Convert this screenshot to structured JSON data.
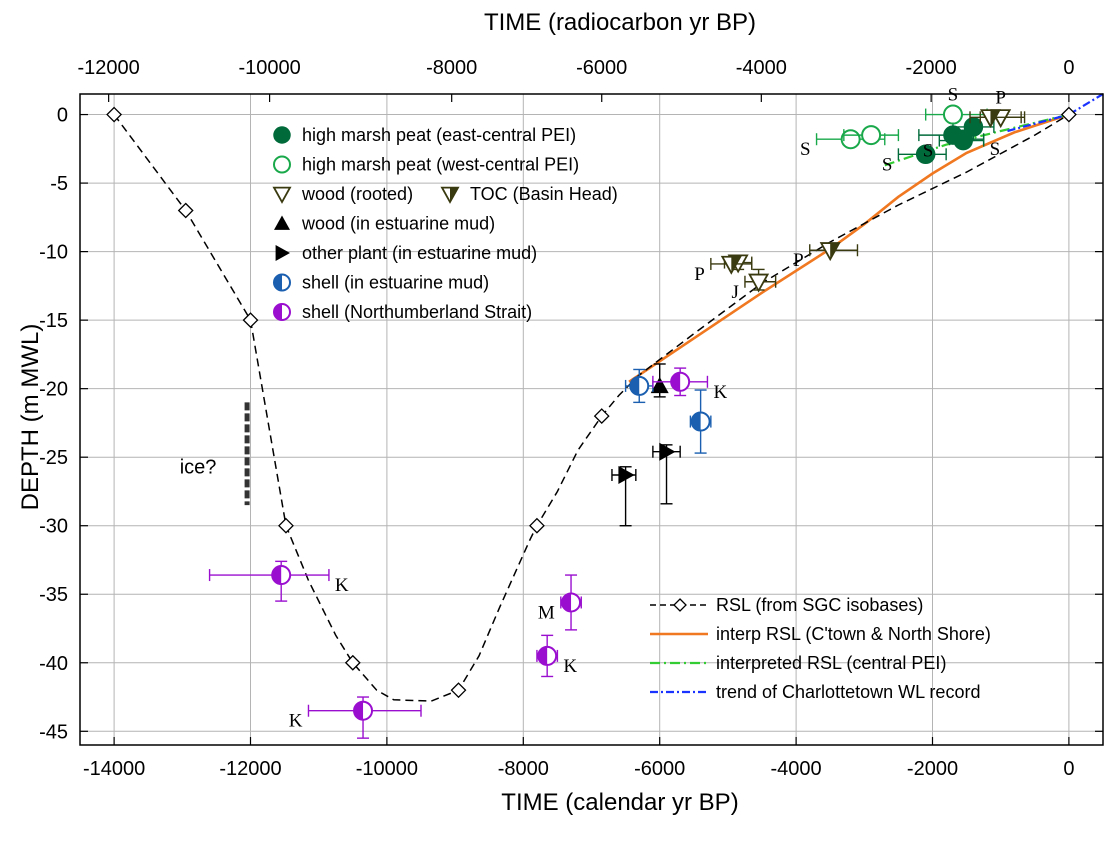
{
  "chart_data": {
    "type": "scatter",
    "title": "",
    "xlabel": "TIME (calendar yr BP)",
    "x2label": "TIME (radiocarbon yr BP)",
    "ylabel": "DEPTH (m MWL)",
    "xlim": [
      -14500,
      500
    ],
    "ylim": [
      -46,
      1.5
    ],
    "x_ticks": [
      -14000,
      -12000,
      -10000,
      -8000,
      -6000,
      -4000,
      -2000,
      0
    ],
    "x2_ticks": [
      -12000,
      -10000,
      -8000,
      -6000,
      -4000,
      -2000,
      0
    ],
    "x2_tick_positions_calendar": [
      -14080,
      -11720,
      -9050,
      -6850,
      -4510,
      -2020,
      0
    ],
    "y_ticks": [
      0,
      -5,
      -10,
      -15,
      -20,
      -25,
      -30,
      -35,
      -40,
      -45
    ],
    "grid": true,
    "colors": {
      "east_peat": "#006a3a",
      "west_peat": "#19a84a",
      "wood": "#3a3a10",
      "black": "#000000",
      "shell_estuarine": "#1a5fb0",
      "shell_strait": "#9a0fcf",
      "rsl_sgc": "#000000",
      "rsl_interp": "#f07820",
      "rsl_central": "#33cc33",
      "wl_trend": "#1a33ff"
    },
    "legend": {
      "placement": "top-left",
      "items": [
        {
          "label": "high marsh peat (east-central PEI)",
          "marker": "circle-filled"
        },
        {
          "label": "high marsh peat (west-central PEI)",
          "marker": "circle-open"
        },
        {
          "label": "wood (rooted)",
          "marker": "triangle-down-open"
        },
        {
          "label": "TOC (Basin Head)",
          "marker": "triangle-down-half"
        },
        {
          "label": "wood (in estuarine mud)",
          "marker": "triangle-up-filled"
        },
        {
          "label": "other plant (in estuarine mud)",
          "marker": "triangle-right-filled"
        },
        {
          "label": "shell (in estuarine mud)",
          "marker": "circle-half"
        },
        {
          "label": "shell (Northumberland Strait)",
          "marker": "circle-half"
        }
      ]
    },
    "legend2": {
      "placement": "bottom-right",
      "items": [
        {
          "label": "RSL (from SGC isobases)",
          "style": "dashed-diamond"
        },
        {
          "label": "interp RSL (C'town & North Shore)",
          "style": "solid-orange"
        },
        {
          "label": "interpreted RSL (central PEI)",
          "style": "dashdot-green"
        },
        {
          "label": "trend of Charlottetown WL record",
          "style": "dashdot-blue"
        }
      ]
    },
    "series": [
      {
        "name": "RSL (from SGC isobases)",
        "points": [
          [
            -14000,
            0
          ],
          [
            -12100,
            -7
          ],
          [
            -11100,
            -15
          ],
          [
            -10400,
            -21
          ],
          [
            -10000,
            -25
          ],
          [
            -9600,
            -28
          ],
          [
            -9400,
            -30
          ],
          [
            -9000,
            -33
          ],
          [
            -8600,
            -37
          ],
          [
            -8200,
            -40
          ],
          [
            -7900,
            -42
          ],
          [
            -7600,
            -43
          ],
          [
            -7200,
            -42.8
          ],
          [
            -6900,
            -42
          ],
          [
            -6700,
            -38
          ],
          [
            -6400,
            -33
          ],
          [
            -6200,
            -30
          ],
          [
            -6000,
            -27
          ],
          [
            -5700,
            -24
          ],
          [
            -5300,
            -22
          ],
          [
            -4900,
            -20.5
          ],
          [
            -4400,
            -19
          ],
          [
            -3500,
            -17
          ],
          [
            -2500,
            -14
          ],
          [
            -1500,
            -11.5
          ],
          [
            -500,
            -9
          ],
          [
            0,
            -7.5
          ],
          [
            300,
            -6.5
          ]
        ],
        "diamonds": [
          [
            -14000,
            0
          ],
          [
            -12100,
            -7
          ],
          [
            -11100,
            -15
          ],
          [
            -10200,
            -30
          ],
          [
            -9000,
            -40
          ],
          [
            -7000,
            -42
          ],
          [
            -6000,
            -30
          ],
          [
            -5000,
            -22
          ],
          [
            -4000,
            -18
          ],
          [
            -3000,
            -15
          ],
          [
            -2000,
            -12
          ],
          [
            -1000,
            -10
          ],
          [
            0,
            -7.5
          ]
        ]
      }
    ],
    "rsl_curve": [
      [
        -14000,
        0
      ],
      [
        -12950,
        -7
      ],
      [
        -12000,
        -15
      ],
      [
        -11480,
        -30
      ],
      [
        -11150,
        -34
      ],
      [
        -10750,
        -38
      ],
      [
        -10500,
        -40
      ],
      [
        -10150,
        -42
      ],
      [
        -9900,
        -42.7
      ],
      [
        -9350,
        -42.8
      ],
      [
        -8950,
        -42
      ],
      [
        -8650,
        -39.5
      ],
      [
        -8350,
        -36
      ],
      [
        -7900,
        -31
      ],
      [
        -7800,
        -30
      ],
      [
        -7500,
        -27.5
      ],
      [
        -7200,
        -24.5
      ],
      [
        -6850,
        -22
      ],
      [
        -6600,
        -20.5
      ],
      [
        -6300,
        -19
      ],
      [
        -5500,
        -16
      ],
      [
        -4500,
        -12.3
      ],
      [
        -3500,
        -9.3
      ],
      [
        -2500,
        -6.6
      ],
      [
        -1500,
        -4.2
      ],
      [
        -500,
        -1.5
      ],
      [
        0,
        0
      ]
    ],
    "rsl_diamonds": [
      [
        -14000,
        0
      ],
      [
        -12950,
        -7
      ],
      [
        -12000,
        -15
      ],
      [
        -11480,
        -30
      ],
      [
        -10500,
        -40
      ],
      [
        -8950,
        -42
      ],
      [
        -7800,
        -30
      ],
      [
        -6850,
        -22
      ],
      [
        0,
        0
      ]
    ],
    "interp_curve": [
      [
        -6450,
        -19.5
      ],
      [
        -4500,
        -13
      ],
      [
        -3500,
        -9.8
      ],
      [
        -3000,
        -8
      ],
      [
        -2500,
        -6
      ],
      [
        -2000,
        -4.3
      ],
      [
        -1500,
        -2.8
      ],
      [
        -800,
        -1.3
      ],
      [
        0,
        0
      ]
    ],
    "central_curve": [
      [
        -2700,
        -3.7
      ],
      [
        -1800,
        -2.2
      ],
      [
        -1000,
        -1.2
      ],
      [
        0,
        0
      ]
    ],
    "wl_curve": [
      [
        -900,
        -1.2
      ],
      [
        0,
        0
      ],
      [
        500,
        1.5
      ]
    ],
    "points": {
      "east_peat": [
        {
          "x": -2100,
          "y": -2.9,
          "xerr": [
            400,
            300
          ],
          "label": "S",
          "label_side": "left"
        },
        {
          "x": -1700,
          "y": -1.5,
          "xerr": [
            500,
            300
          ]
        },
        {
          "x": -1550,
          "y": -1.9,
          "xerr": [
            350,
            300
          ],
          "label": "S",
          "label_side": "left"
        },
        {
          "x": -1400,
          "y": -0.9,
          "xerr": [
            300,
            300
          ]
        },
        {
          "x": -1550,
          "y": -1.8,
          "xerr": [
            200,
            300
          ],
          "label": "S",
          "label_side": "right"
        }
      ],
      "west_peat": [
        {
          "x": -3200,
          "y": -1.8,
          "xerr": [
            500,
            500
          ],
          "label": "S",
          "label_side": "left"
        },
        {
          "x": -2900,
          "y": -1.5,
          "xerr": [
            400,
            400
          ]
        },
        {
          "x": -1700,
          "y": 0,
          "xerr": [
            400,
            500
          ],
          "label": "S",
          "label_side": "top"
        }
      ],
      "wood_rooted": [
        {
          "x": -4550,
          "y": -12.2,
          "xerr": [
            200,
            250
          ],
          "yerr": [
            0.6,
            0.9
          ],
          "label": "J",
          "label_side": "left"
        },
        {
          "x": -4850,
          "y": -10.8,
          "xerr": [
            200,
            200
          ],
          "yerr": [
            0.5,
            0.5
          ]
        },
        {
          "x": -1000,
          "y": -0.2,
          "xerr": [
            300,
            300
          ],
          "label": "P",
          "label_side": "top"
        }
      ],
      "toc": [
        {
          "x": -4950,
          "y": -10.9,
          "xerr": [
            300,
            300
          ],
          "label": "P",
          "label_side": "left"
        },
        {
          "x": -3500,
          "y": -9.9,
          "xerr": [
            300,
            400
          ],
          "label": "P",
          "label_side": "left"
        },
        {
          "x": -1150,
          "y": -0.2,
          "xerr": [
            300,
            500
          ]
        }
      ],
      "wood_estuarine": [
        {
          "x": -6000,
          "y": -19.8,
          "yerr": [
            0.8,
            1.6
          ]
        }
      ],
      "plant_estuarine": [
        {
          "x": -6500,
          "y": -26.3,
          "xerr": [
            200,
            150
          ],
          "yerr": [
            3.7,
            0.6
          ]
        },
        {
          "x": -5900,
          "y": -24.6,
          "xerr": [
            200,
            200
          ],
          "yerr": [
            3.8,
            0.5
          ]
        }
      ],
      "shell_estuarine": [
        {
          "x": -6300,
          "y": -19.8,
          "xerr": [
            200,
            200
          ],
          "yerr": [
            1.2,
            1.2
          ]
        },
        {
          "x": -5400,
          "y": -22.4,
          "xerr": [
            150,
            150
          ],
          "yerr": [
            2.3,
            2.3
          ]
        }
      ],
      "shell_strait": [
        {
          "x": -11550,
          "y": -33.6,
          "xerr": [
            1050,
            700
          ],
          "yerr": [
            1.9,
            1.0
          ],
          "label": "K",
          "label_side": "right"
        },
        {
          "x": -10350,
          "y": -43.5,
          "xerr": [
            800,
            850
          ],
          "yerr": [
            2.0,
            1.0
          ],
          "label": "K",
          "label_side": "left"
        },
        {
          "x": -7650,
          "y": -39.5,
          "xerr": [
            150,
            150
          ],
          "yerr": [
            1.5,
            1.5
          ],
          "label": "K",
          "label_side": "right"
        },
        {
          "x": -7300,
          "y": -35.6,
          "xerr": [
            150,
            150
          ],
          "yerr": [
            2.0,
            2.0
          ],
          "label": "M",
          "label_side": "left"
        },
        {
          "x": -5700,
          "y": -19.5,
          "xerr": [
            400,
            400
          ],
          "yerr": [
            1.0,
            1.0
          ],
          "label": "K",
          "label_side": "right"
        }
      ]
    },
    "annotations": [
      {
        "text": "ice?",
        "x": -12500,
        "y": -26.2
      }
    ],
    "ice_segment": {
      "x": -12050,
      "y1": -21,
      "y2": -28.5
    }
  }
}
